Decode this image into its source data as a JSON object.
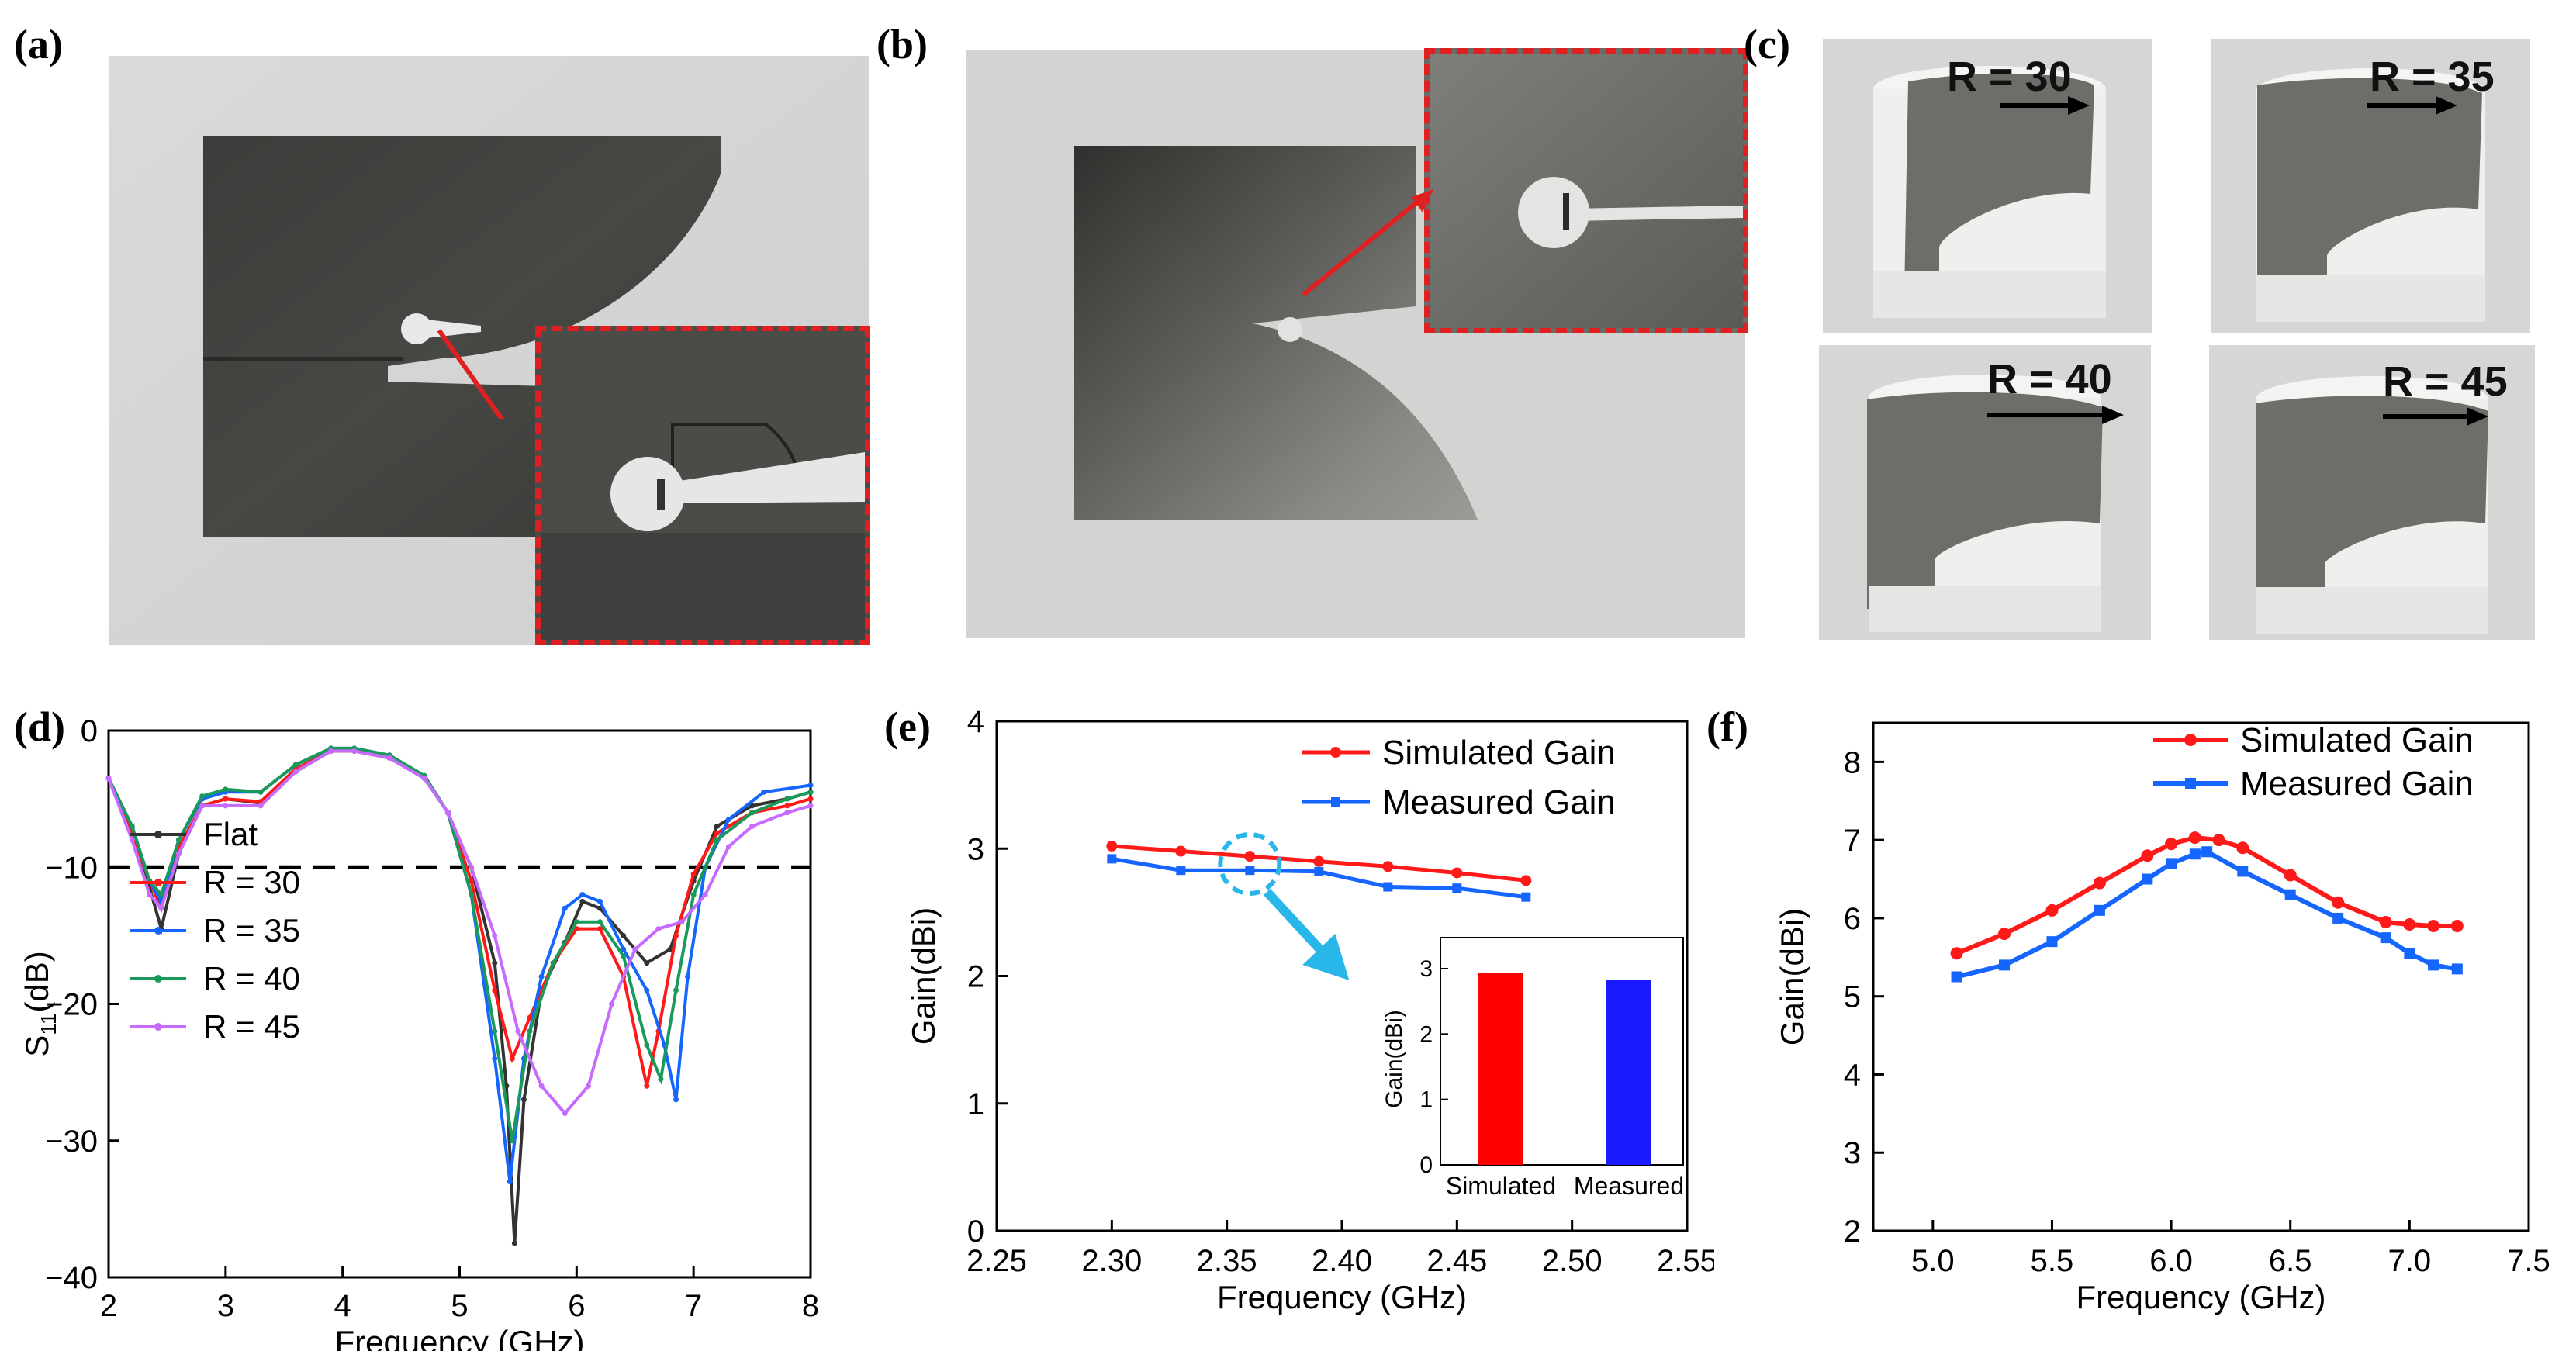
{
  "panels": {
    "a": "(a)",
    "b": "(b)",
    "c": "(c)",
    "d": "(d)",
    "e": "(e)",
    "f": "(f)"
  },
  "photos_c": {
    "r30": "R = 30",
    "r35": "R = 35",
    "r40": "R = 40",
    "r45": "R = 45"
  },
  "colors": {
    "black": "#333333",
    "red": "#ff1a1a",
    "blue": "#1565ff",
    "green": "#1a9a5a",
    "violet": "#c76bff",
    "bar_red": "#ff0000",
    "bar_blue": "#1a1aff",
    "callout": "#29b6e8",
    "dashed_box": "#e02020",
    "accent_arrow": "#e02020"
  },
  "chart_data": [
    {
      "panel": "d",
      "type": "line",
      "xlabel": "Frequency (GHz)",
      "ylabel_main": "S",
      "ylabel_sub": "11",
      "ylabel_tail": "(dB)",
      "xlim": [
        2,
        8
      ],
      "ylim": [
        -40,
        0
      ],
      "xticks": [
        "2",
        "3",
        "4",
        "5",
        "6",
        "7",
        "8"
      ],
      "yticks": [
        "0",
        "−10",
        "−20",
        "−30",
        "−40"
      ],
      "threshold": -10,
      "legend": [
        "Flat",
        "R = 30",
        "R = 35",
        "R = 40",
        "R = 45"
      ],
      "series": [
        {
          "name": "Flat",
          "x": [
            2.0,
            2.2,
            2.35,
            2.45,
            2.6,
            2.8,
            3.0,
            3.3,
            3.6,
            3.9,
            4.1,
            4.4,
            4.7,
            4.9,
            5.1,
            5.3,
            5.4,
            5.47,
            5.55,
            5.7,
            5.9,
            6.05,
            6.2,
            6.4,
            6.6,
            6.8,
            7.0,
            7.2,
            7.5,
            7.8,
            8.0
          ],
          "y": [
            -3.5,
            -7,
            -11.5,
            -14.5,
            -9,
            -5.5,
            -5,
            -5.3,
            -3,
            -1.5,
            -1.5,
            -2,
            -3.5,
            -6,
            -10,
            -17,
            -26,
            -37.5,
            -27,
            -19,
            -15.5,
            -12.5,
            -13,
            -15,
            -17,
            -16,
            -11,
            -7,
            -5.5,
            -5,
            -4.5
          ]
        },
        {
          "name": "R = 30",
          "x": [
            2.0,
            2.2,
            2.35,
            2.45,
            2.6,
            2.8,
            3.0,
            3.3,
            3.6,
            3.9,
            4.1,
            4.4,
            4.7,
            4.9,
            5.1,
            5.3,
            5.45,
            5.6,
            5.8,
            6.0,
            6.2,
            6.4,
            6.6,
            6.7,
            6.85,
            7.0,
            7.2,
            7.5,
            7.8,
            8.0
          ],
          "y": [
            -3.5,
            -7.5,
            -11,
            -13,
            -8.5,
            -5.5,
            -5,
            -5.2,
            -2.8,
            -1.5,
            -1.5,
            -2,
            -3.5,
            -6,
            -11,
            -19,
            -24,
            -21,
            -17,
            -14.5,
            -14.5,
            -18,
            -26,
            -22,
            -15,
            -10.5,
            -7.5,
            -6,
            -5.5,
            -5
          ]
        },
        {
          "name": "R = 35",
          "x": [
            2.0,
            2.2,
            2.35,
            2.45,
            2.6,
            2.8,
            3.0,
            3.3,
            3.6,
            3.9,
            4.1,
            4.4,
            4.7,
            4.9,
            5.1,
            5.3,
            5.43,
            5.55,
            5.7,
            5.9,
            6.05,
            6.2,
            6.4,
            6.6,
            6.75,
            6.85,
            6.95,
            7.1,
            7.3,
            7.6,
            8.0
          ],
          "y": [
            -3.5,
            -7,
            -11,
            -12.5,
            -8,
            -5,
            -4.5,
            -4.5,
            -2.5,
            -1.3,
            -1.3,
            -1.8,
            -3.5,
            -6,
            -12,
            -24,
            -33,
            -24,
            -18,
            -13,
            -12,
            -12.5,
            -16,
            -19,
            -23,
            -27,
            -18,
            -10,
            -6.5,
            -4.5,
            -4
          ]
        },
        {
          "name": "R = 40",
          "x": [
            2.0,
            2.2,
            2.35,
            2.45,
            2.6,
            2.8,
            3.0,
            3.3,
            3.6,
            3.9,
            4.1,
            4.4,
            4.7,
            4.9,
            5.1,
            5.3,
            5.45,
            5.6,
            5.8,
            6.0,
            6.2,
            6.4,
            6.6,
            6.72,
            6.85,
            7.0,
            7.2,
            7.5,
            7.8,
            8.0
          ],
          "y": [
            -3.5,
            -7,
            -11,
            -12,
            -8,
            -4.8,
            -4.3,
            -4.5,
            -2.5,
            -1.3,
            -1.3,
            -1.8,
            -3.3,
            -6,
            -12,
            -22,
            -30,
            -22,
            -17,
            -14,
            -14,
            -16.5,
            -23,
            -25.5,
            -19,
            -12,
            -8,
            -6,
            -5,
            -4.5
          ]
        },
        {
          "name": "R = 45",
          "x": [
            2.0,
            2.2,
            2.35,
            2.45,
            2.6,
            2.8,
            3.0,
            3.3,
            3.6,
            3.9,
            4.1,
            4.4,
            4.7,
            4.9,
            5.1,
            5.3,
            5.5,
            5.7,
            5.9,
            6.1,
            6.3,
            6.5,
            6.7,
            6.9,
            7.1,
            7.3,
            7.5,
            7.8,
            8.0
          ],
          "y": [
            -3.5,
            -8,
            -12,
            -13,
            -9,
            -5.5,
            -5.5,
            -5.5,
            -3,
            -1.5,
            -1.5,
            -2,
            -3.5,
            -6,
            -10,
            -15,
            -22,
            -26,
            -28,
            -26,
            -20,
            -16,
            -14.5,
            -14,
            -12,
            -8.5,
            -7,
            -6,
            -5.5
          ]
        }
      ]
    },
    {
      "panel": "e",
      "type": "line",
      "xlabel": "Frequency (GHz)",
      "ylabel": "Gain(dBi)",
      "xlim": [
        2.25,
        2.55
      ],
      "ylim": [
        0,
        4
      ],
      "xticks": [
        "2.25",
        "2.30",
        "2.35",
        "2.40",
        "2.45",
        "2.50",
        "2.55"
      ],
      "yticks": [
        "0",
        "1",
        "2",
        "3",
        "4"
      ],
      "legend": [
        "Simulated Gain",
        "Measured Gain"
      ],
      "series": [
        {
          "name": "Simulated Gain",
          "x": [
            2.3,
            2.33,
            2.36,
            2.39,
            2.42,
            2.45,
            2.48
          ],
          "y": [
            3.02,
            2.98,
            2.94,
            2.9,
            2.86,
            2.81,
            2.75
          ]
        },
        {
          "name": "Measured Gain",
          "x": [
            2.3,
            2.33,
            2.36,
            2.39,
            2.42,
            2.45,
            2.48
          ],
          "y": [
            2.92,
            2.83,
            2.83,
            2.82,
            2.7,
            2.69,
            2.62
          ]
        }
      ],
      "inset": {
        "type": "bar",
        "ylabel": "Gain(dBi)",
        "ylim": [
          0,
          3
        ],
        "yticks": [
          "0",
          "1",
          "2",
          "3"
        ],
        "categories": [
          "Simulated",
          "Measured"
        ],
        "values": [
          2.94,
          2.83
        ]
      }
    },
    {
      "panel": "f",
      "type": "line",
      "xlabel": "Frequency (GHz)",
      "ylabel": "Gain(dBi)",
      "xlim": [
        4.75,
        7.5
      ],
      "ylim": [
        2,
        8.5
      ],
      "xticks": [
        "5.0",
        "5.5",
        "6.0",
        "6.5",
        "7.0",
        "7.5"
      ],
      "yticks": [
        "2",
        "3",
        "4",
        "5",
        "6",
        "7",
        "8"
      ],
      "legend": [
        "Simulated Gain",
        "Measured Gain"
      ],
      "series": [
        {
          "name": "Simulated Gain",
          "x": [
            5.1,
            5.3,
            5.5,
            5.7,
            5.9,
            6.0,
            6.1,
            6.2,
            6.3,
            6.5,
            6.7,
            6.9,
            7.0,
            7.1,
            7.2
          ],
          "y": [
            5.55,
            5.8,
            6.1,
            6.45,
            6.8,
            6.95,
            7.03,
            7.0,
            6.9,
            6.55,
            6.2,
            5.95,
            5.92,
            5.9,
            5.9
          ]
        },
        {
          "name": "Measured Gain",
          "x": [
            5.1,
            5.3,
            5.5,
            5.7,
            5.9,
            6.0,
            6.1,
            6.15,
            6.3,
            6.5,
            6.7,
            6.9,
            7.0,
            7.1,
            7.2
          ],
          "y": [
            5.25,
            5.4,
            5.7,
            6.1,
            6.5,
            6.7,
            6.82,
            6.85,
            6.6,
            6.3,
            6.0,
            5.75,
            5.55,
            5.4,
            5.35
          ]
        }
      ]
    }
  ]
}
